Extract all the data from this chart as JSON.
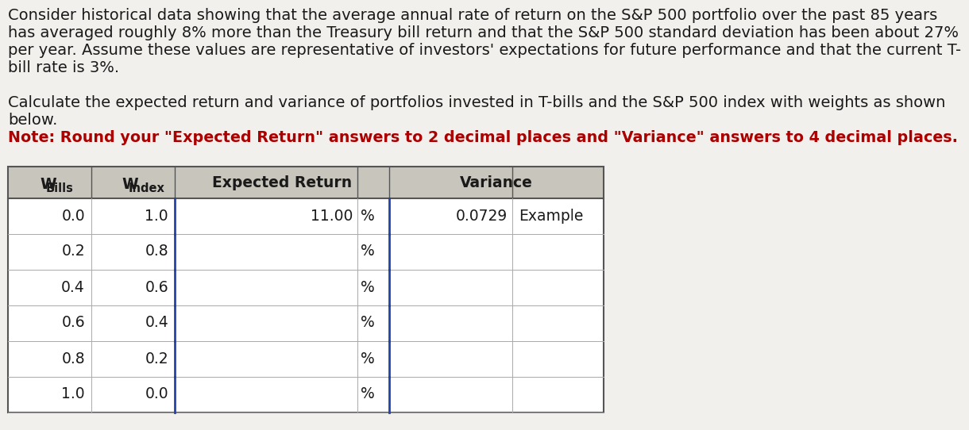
{
  "paragraph1_lines": [
    "Consider historical data showing that the average annual rate of return on the S&P 500 portfolio over the past 85 years",
    "has averaged roughly 8% more than the Treasury bill return and that the S&P 500 standard deviation has been about 27%",
    "per year. Assume these values are representative of investors' expectations for future performance and that the current T-",
    "bill rate is 3%."
  ],
  "paragraph2_lines": [
    "Calculate the expected return and variance of portfolios invested in T-bills and the S&P 500 index with weights as shown",
    "below."
  ],
  "note_line": "Note: Round your \"Expected Return\" answers to 2 decimal places and \"Variance\" answers to 4 decimal places.",
  "wbills": [
    "0.0",
    "0.2",
    "0.4",
    "0.6",
    "0.8",
    "1.0"
  ],
  "windex": [
    "1.0",
    "0.8",
    "0.6",
    "0.4",
    "0.2",
    "0.0"
  ],
  "exp_return_val": "11.00",
  "variance_val": "0.0729",
  "example_text": "Example",
  "bg_color": "#f2f0ed",
  "table_header_bg": "#c8c5bc",
  "table_data_bg": "#ffffff",
  "note_color": "#aa0000",
  "text_color": "#1a1a1a",
  "border_color_outer": "#555555",
  "border_color_inner": "#999999",
  "divider_color": "#2244aa",
  "font_size_body": 14.0,
  "font_size_note": 13.8,
  "font_size_table_hdr": 13.5,
  "font_size_table_data": 13.5
}
